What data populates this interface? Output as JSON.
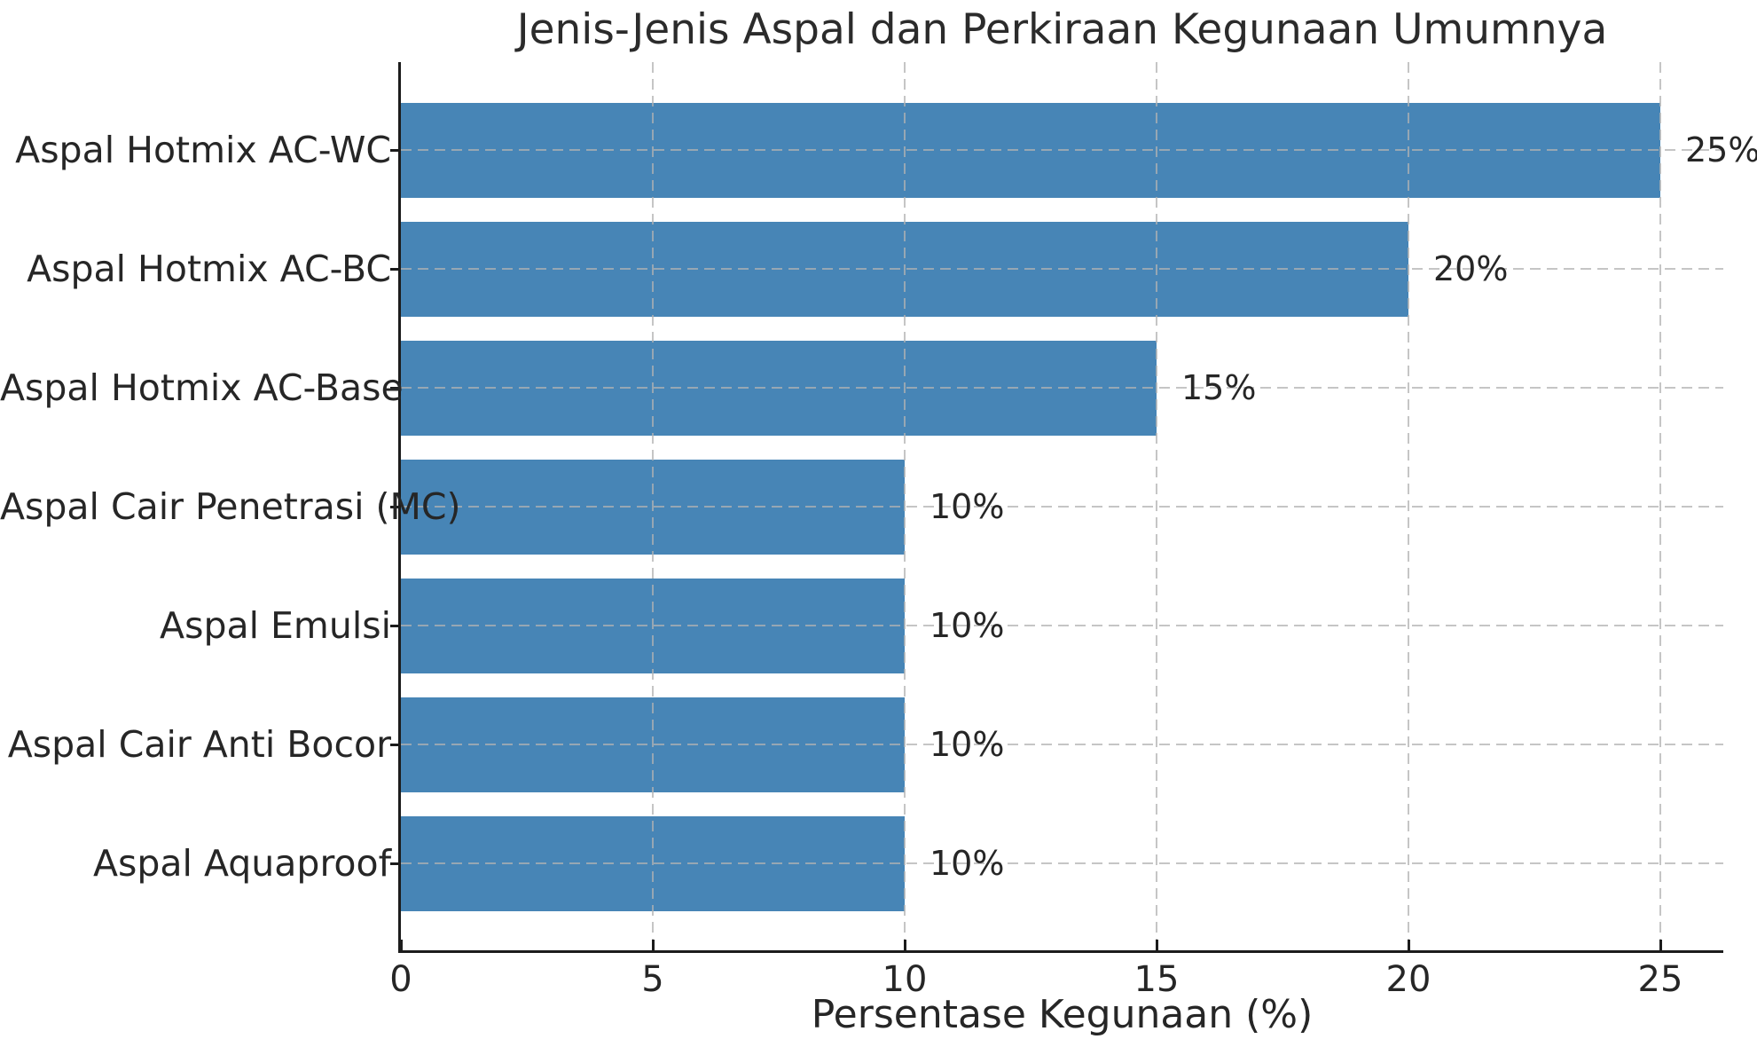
{
  "chart_data": {
    "type": "bar",
    "orientation": "horizontal",
    "title": "Jenis-Jenis Aspal dan Perkiraan Kegunaan Umumnya",
    "categories": [
      "Aspal Hotmix AC-WC",
      "Aspal Hotmix AC-BC",
      "Aspal Hotmix AC-Base",
      "Aspal Cair Penetrasi (MC)",
      "Aspal Emulsi",
      "Aspal Cair Anti Bocor",
      "Aspal Aquaproof"
    ],
    "values": [
      25,
      20,
      15,
      10,
      10,
      10,
      10
    ],
    "data_labels": [
      "25%",
      "20%",
      "15%",
      "10%",
      "10%",
      "10%",
      "10%"
    ],
    "xlabel": "Persentase Kegunaan (%)",
    "ylabel": "",
    "xticks": [
      0,
      5,
      10,
      15,
      20,
      25
    ],
    "xtick_labels": [
      "0",
      "5",
      "10",
      "15",
      "20",
      "25"
    ],
    "xlim": [
      0,
      26.25
    ],
    "grid": true,
    "grid_style": "dashed",
    "legend": false,
    "colors": {
      "bar": "#4785b6",
      "grid": "#c7c7c7",
      "spine": "#1c1c1c",
      "text": "#262626",
      "background": "#ffffff"
    }
  }
}
